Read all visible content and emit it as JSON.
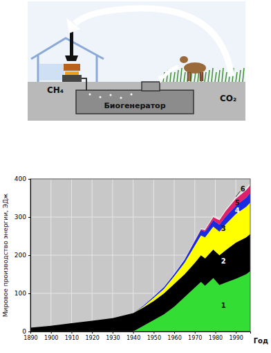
{
  "chart_data": {
    "type": "area",
    "stacked": true,
    "grid": true,
    "y_label": "Мировое производство энергии, ЭДж",
    "x_label": "Год",
    "x": [
      1890,
      1900,
      1910,
      1920,
      1930,
      1940,
      1945,
      1950,
      1955,
      1960,
      1965,
      1970,
      1973,
      1975,
      1979,
      1982,
      1985,
      1990,
      1995,
      1997
    ],
    "xlim": [
      1890,
      1997
    ],
    "xticks": [
      1890,
      1900,
      1910,
      1920,
      1930,
      1940,
      1950,
      1960,
      1970,
      1980,
      1990
    ],
    "ylim": [
      0,
      400
    ],
    "yticks": [
      0,
      100,
      200,
      300,
      400
    ],
    "series": [
      {
        "name": "1",
        "color": "#33dd33",
        "values": [
          0,
          0,
          0,
          0,
          0,
          0,
          15,
          30,
          45,
          65,
          90,
          115,
          130,
          120,
          140,
          122,
          128,
          138,
          150,
          158
        ]
      },
      {
        "name": "2",
        "color": "#000000",
        "values": [
          10,
          15,
          22,
          28,
          35,
          48,
          48,
          50,
          55,
          60,
          60,
          65,
          70,
          72,
          75,
          78,
          85,
          95,
          97,
          98
        ]
      },
      {
        "name": "3",
        "color": "#ffff00",
        "values": [
          0,
          0,
          0,
          0,
          0,
          0,
          3,
          8,
          12,
          20,
          30,
          45,
          52,
          55,
          60,
          62,
          68,
          75,
          80,
          82
        ]
      },
      {
        "name": "4",
        "color": "#1a2be0",
        "values": [
          0,
          0,
          0,
          0,
          0,
          0,
          2,
          4,
          5,
          6,
          8,
          12,
          14,
          15,
          17,
          18,
          20,
          22,
          24,
          25
        ]
      },
      {
        "name": "5",
        "color": "#e0206a",
        "values": [
          0,
          0,
          0,
          0,
          0,
          0,
          0,
          0,
          0,
          0,
          0,
          1,
          2,
          4,
          8,
          12,
          15,
          18,
          20,
          20
        ]
      },
      {
        "name": "6",
        "color": "#e8e8e8",
        "values": [
          0,
          0,
          0,
          0,
          0,
          0,
          1,
          1,
          1,
          2,
          2,
          3,
          3,
          3,
          4,
          4,
          4,
          5,
          6,
          6
        ]
      }
    ]
  },
  "diagram": {
    "ch4": "CH₄",
    "generator": "Биогенератор",
    "co2": "CO₂"
  }
}
